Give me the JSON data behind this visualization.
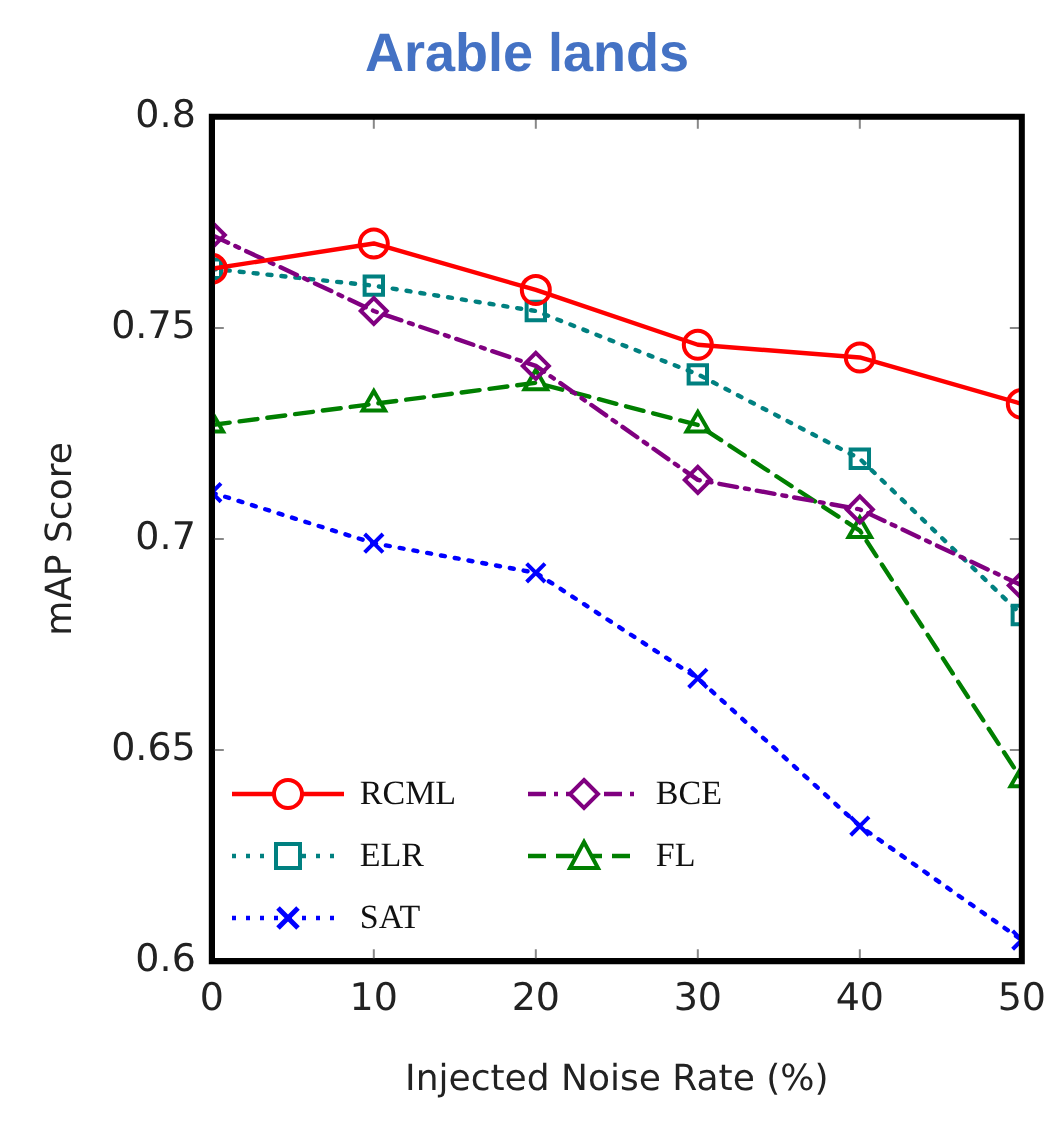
{
  "chart_data": {
    "type": "line",
    "title": "Arable lands",
    "xlabel": "Injected Noise Rate (%)",
    "ylabel": "mAP Score",
    "x": [
      0,
      10,
      20,
      30,
      40,
      50
    ],
    "xlim": [
      0,
      50
    ],
    "xticks": [
      0,
      10,
      20,
      30,
      40,
      50
    ],
    "ylim": [
      0.6,
      0.8
    ],
    "yticks": [
      0.6,
      0.65,
      0.7,
      0.75,
      0.8
    ],
    "grid": false,
    "legend": "bottom left",
    "series": [
      {
        "name": "RCML",
        "color": "#ff0000",
        "marker": "circle",
        "line_style": "solid",
        "values": [
          0.764,
          0.77,
          0.759,
          0.746,
          0.743,
          0.732
        ]
      },
      {
        "name": "BCE",
        "color": "#800080",
        "marker": "diamond",
        "line_style": "dashdot",
        "values": [
          0.772,
          0.754,
          0.741,
          0.714,
          0.707,
          0.689
        ]
      },
      {
        "name": "ELR",
        "color": "#008080",
        "marker": "square",
        "line_style": "dotted",
        "values": [
          0.764,
          0.76,
          0.754,
          0.739,
          0.719,
          0.682
        ]
      },
      {
        "name": "FL",
        "color": "#007f00",
        "marker": "triangle",
        "line_style": "dashed",
        "values": [
          0.727,
          0.732,
          0.737,
          0.727,
          0.702,
          0.643
        ]
      },
      {
        "name": "SAT",
        "color": "#0000ff",
        "marker": "cross",
        "line_style": "dotted",
        "values": [
          0.711,
          0.699,
          0.692,
          0.667,
          0.632,
          0.605
        ]
      }
    ]
  }
}
